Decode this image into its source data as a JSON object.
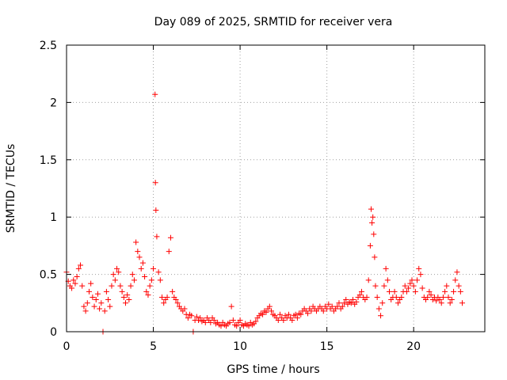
{
  "chart_data": {
    "type": "scatter",
    "title": "Day 089 of 2025, SRMTID for receiver vera",
    "xlabel": "GPS time / hours",
    "ylabel": "SRMTID / TECUs",
    "xlim": [
      0,
      24.1
    ],
    "ylim": [
      0,
      2.5
    ],
    "xticks": [
      0,
      5,
      10,
      15,
      20
    ],
    "xtick_labels": [
      "0",
      "5",
      "10",
      "15",
      "20"
    ],
    "yticks": [
      0,
      0.5,
      1,
      1.5,
      2,
      2.5
    ],
    "ytick_labels": [
      "0",
      "0.5",
      "1",
      "1.5",
      "2",
      "2.5"
    ],
    "grid": true,
    "marker": "+",
    "color": "#ff0000",
    "series": [
      {
        "name": "SRMTID",
        "points": [
          [
            0.0,
            0.52
          ],
          [
            0.1,
            0.44
          ],
          [
            0.2,
            0.4
          ],
          [
            0.3,
            0.38
          ],
          [
            0.4,
            0.45
          ],
          [
            0.5,
            0.42
          ],
          [
            0.6,
            0.48
          ],
          [
            0.7,
            0.55
          ],
          [
            0.8,
            0.58
          ],
          [
            0.9,
            0.4
          ],
          [
            1.0,
            0.22
          ],
          [
            1.1,
            0.18
          ],
          [
            1.2,
            0.25
          ],
          [
            1.3,
            0.35
          ],
          [
            1.4,
            0.42
          ],
          [
            1.5,
            0.3
          ],
          [
            1.6,
            0.22
          ],
          [
            1.7,
            0.28
          ],
          [
            1.8,
            0.33
          ],
          [
            1.9,
            0.2
          ],
          [
            2.0,
            0.25
          ],
          [
            2.1,
            0.0
          ],
          [
            2.2,
            0.18
          ],
          [
            2.3,
            0.35
          ],
          [
            2.4,
            0.28
          ],
          [
            2.5,
            0.22
          ],
          [
            2.6,
            0.4
          ],
          [
            2.7,
            0.5
          ],
          [
            2.8,
            0.45
          ],
          [
            2.9,
            0.55
          ],
          [
            3.0,
            0.52
          ],
          [
            3.1,
            0.4
          ],
          [
            3.2,
            0.35
          ],
          [
            3.3,
            0.3
          ],
          [
            3.4,
            0.25
          ],
          [
            3.5,
            0.32
          ],
          [
            3.6,
            0.28
          ],
          [
            3.7,
            0.4
          ],
          [
            3.8,
            0.5
          ],
          [
            3.9,
            0.45
          ],
          [
            4.0,
            0.78
          ],
          [
            4.1,
            0.7
          ],
          [
            4.2,
            0.65
          ],
          [
            4.3,
            0.55
          ],
          [
            4.4,
            0.6
          ],
          [
            4.5,
            0.48
          ],
          [
            4.6,
            0.35
          ],
          [
            4.7,
            0.32
          ],
          [
            4.8,
            0.4
          ],
          [
            4.9,
            0.45
          ],
          [
            5.0,
            0.55
          ],
          [
            5.1,
            2.07
          ],
          [
            5.12,
            1.3
          ],
          [
            5.15,
            1.06
          ],
          [
            5.2,
            0.83
          ],
          [
            5.3,
            0.52
          ],
          [
            5.4,
            0.45
          ],
          [
            5.5,
            0.3
          ],
          [
            5.6,
            0.25
          ],
          [
            5.7,
            0.28
          ],
          [
            5.8,
            0.3
          ],
          [
            5.9,
            0.7
          ],
          [
            6.0,
            0.82
          ],
          [
            6.1,
            0.35
          ],
          [
            6.2,
            0.3
          ],
          [
            6.3,
            0.28
          ],
          [
            6.4,
            0.25
          ],
          [
            6.5,
            0.22
          ],
          [
            6.6,
            0.2
          ],
          [
            6.7,
            0.18
          ],
          [
            6.8,
            0.2
          ],
          [
            6.9,
            0.15
          ],
          [
            7.0,
            0.12
          ],
          [
            7.1,
            0.15
          ],
          [
            7.2,
            0.14
          ],
          [
            7.3,
            0.0
          ],
          [
            7.4,
            0.1
          ],
          [
            7.5,
            0.13
          ],
          [
            7.6,
            0.1
          ],
          [
            7.7,
            0.12
          ],
          [
            7.8,
            0.09
          ],
          [
            7.9,
            0.1
          ],
          [
            8.0,
            0.08
          ],
          [
            8.1,
            0.12
          ],
          [
            8.2,
            0.1
          ],
          [
            8.3,
            0.08
          ],
          [
            8.4,
            0.12
          ],
          [
            8.5,
            0.1
          ],
          [
            8.6,
            0.07
          ],
          [
            8.7,
            0.08
          ],
          [
            8.8,
            0.06
          ],
          [
            8.9,
            0.05
          ],
          [
            9.0,
            0.08
          ],
          [
            9.1,
            0.06
          ],
          [
            9.2,
            0.05
          ],
          [
            9.3,
            0.07
          ],
          [
            9.4,
            0.08
          ],
          [
            9.5,
            0.22
          ],
          [
            9.6,
            0.1
          ],
          [
            9.7,
            0.06
          ],
          [
            9.8,
            0.05
          ],
          [
            9.9,
            0.08
          ],
          [
            10.0,
            0.1
          ],
          [
            10.1,
            0.06
          ],
          [
            10.2,
            0.05
          ],
          [
            10.3,
            0.07
          ],
          [
            10.4,
            0.06
          ],
          [
            10.5,
            0.05
          ],
          [
            10.6,
            0.08
          ],
          [
            10.7,
            0.06
          ],
          [
            10.8,
            0.07
          ],
          [
            10.9,
            0.09
          ],
          [
            11.0,
            0.12
          ],
          [
            11.1,
            0.14
          ],
          [
            11.2,
            0.16
          ],
          [
            11.3,
            0.15
          ],
          [
            11.4,
            0.18
          ],
          [
            11.5,
            0.17
          ],
          [
            11.6,
            0.2
          ],
          [
            11.7,
            0.22
          ],
          [
            11.8,
            0.18
          ],
          [
            11.9,
            0.15
          ],
          [
            12.0,
            0.14
          ],
          [
            12.1,
            0.12
          ],
          [
            12.2,
            0.1
          ],
          [
            12.3,
            0.15
          ],
          [
            12.4,
            0.12
          ],
          [
            12.5,
            0.1
          ],
          [
            12.6,
            0.14
          ],
          [
            12.7,
            0.12
          ],
          [
            12.8,
            0.15
          ],
          [
            12.9,
            0.12
          ],
          [
            13.0,
            0.1
          ],
          [
            13.1,
            0.14
          ],
          [
            13.2,
            0.15
          ],
          [
            13.3,
            0.12
          ],
          [
            13.4,
            0.16
          ],
          [
            13.5,
            0.15
          ],
          [
            13.6,
            0.18
          ],
          [
            13.7,
            0.2
          ],
          [
            13.8,
            0.18
          ],
          [
            13.9,
            0.16
          ],
          [
            14.0,
            0.2
          ],
          [
            14.1,
            0.18
          ],
          [
            14.2,
            0.22
          ],
          [
            14.3,
            0.2
          ],
          [
            14.4,
            0.18
          ],
          [
            14.5,
            0.2
          ],
          [
            14.6,
            0.22
          ],
          [
            14.7,
            0.2
          ],
          [
            14.8,
            0.18
          ],
          [
            14.9,
            0.22
          ],
          [
            15.0,
            0.2
          ],
          [
            15.1,
            0.24
          ],
          [
            15.2,
            0.2
          ],
          [
            15.3,
            0.22
          ],
          [
            15.4,
            0.18
          ],
          [
            15.5,
            0.2
          ],
          [
            15.6,
            0.22
          ],
          [
            15.7,
            0.25
          ],
          [
            15.8,
            0.2
          ],
          [
            15.9,
            0.22
          ],
          [
            16.0,
            0.25
          ],
          [
            16.1,
            0.28
          ],
          [
            16.2,
            0.24
          ],
          [
            16.3,
            0.26
          ],
          [
            16.4,
            0.25
          ],
          [
            16.5,
            0.28
          ],
          [
            16.6,
            0.24
          ],
          [
            16.7,
            0.26
          ],
          [
            16.8,
            0.3
          ],
          [
            16.9,
            0.32
          ],
          [
            17.0,
            0.35
          ],
          [
            17.1,
            0.3
          ],
          [
            17.2,
            0.28
          ],
          [
            17.3,
            0.3
          ],
          [
            17.4,
            0.45
          ],
          [
            17.5,
            0.75
          ],
          [
            17.55,
            1.07
          ],
          [
            17.6,
            0.95
          ],
          [
            17.65,
            1.0
          ],
          [
            17.7,
            0.85
          ],
          [
            17.75,
            0.65
          ],
          [
            17.8,
            0.4
          ],
          [
            17.9,
            0.3
          ],
          [
            18.0,
            0.2
          ],
          [
            18.1,
            0.14
          ],
          [
            18.2,
            0.25
          ],
          [
            18.3,
            0.4
          ],
          [
            18.4,
            0.55
          ],
          [
            18.5,
            0.45
          ],
          [
            18.6,
            0.35
          ],
          [
            18.7,
            0.28
          ],
          [
            18.8,
            0.3
          ],
          [
            18.9,
            0.35
          ],
          [
            19.0,
            0.3
          ],
          [
            19.1,
            0.25
          ],
          [
            19.2,
            0.28
          ],
          [
            19.3,
            0.3
          ],
          [
            19.4,
            0.35
          ],
          [
            19.5,
            0.4
          ],
          [
            19.6,
            0.35
          ],
          [
            19.7,
            0.38
          ],
          [
            19.8,
            0.42
          ],
          [
            19.9,
            0.45
          ],
          [
            20.0,
            0.4
          ],
          [
            20.1,
            0.35
          ],
          [
            20.2,
            0.45
          ],
          [
            20.3,
            0.55
          ],
          [
            20.4,
            0.5
          ],
          [
            20.5,
            0.38
          ],
          [
            20.6,
            0.3
          ],
          [
            20.7,
            0.28
          ],
          [
            20.8,
            0.3
          ],
          [
            20.9,
            0.35
          ],
          [
            21.0,
            0.32
          ],
          [
            21.1,
            0.28
          ],
          [
            21.2,
            0.3
          ],
          [
            21.3,
            0.27
          ],
          [
            21.4,
            0.3
          ],
          [
            21.5,
            0.28
          ],
          [
            21.6,
            0.25
          ],
          [
            21.7,
            0.3
          ],
          [
            21.8,
            0.35
          ],
          [
            21.9,
            0.4
          ],
          [
            22.0,
            0.3
          ],
          [
            22.1,
            0.25
          ],
          [
            22.2,
            0.28
          ],
          [
            22.3,
            0.35
          ],
          [
            22.4,
            0.45
          ],
          [
            22.5,
            0.52
          ],
          [
            22.6,
            0.4
          ],
          [
            22.7,
            0.35
          ],
          [
            22.8,
            0.25
          ]
        ]
      }
    ]
  }
}
